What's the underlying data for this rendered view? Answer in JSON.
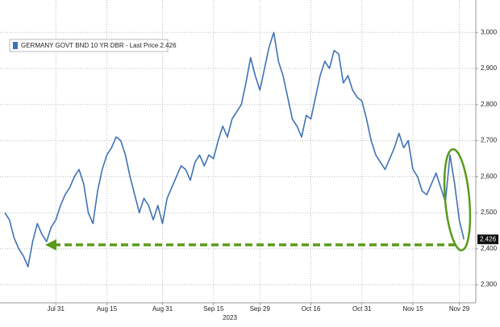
{
  "chart_data": {
    "type": "line",
    "xlabel": "2023",
    "categories": [
      null,
      null,
      null,
      null,
      null,
      null,
      null,
      null,
      null,
      null,
      null,
      "Jul 31",
      null,
      null,
      null,
      null,
      null,
      null,
      null,
      null,
      null,
      null,
      "Aug 15",
      null,
      null,
      null,
      null,
      null,
      null,
      null,
      null,
      null,
      null,
      null,
      "Aug 31",
      null,
      null,
      null,
      null,
      null,
      null,
      null,
      null,
      null,
      null,
      "Sep 15",
      null,
      null,
      null,
      null,
      null,
      null,
      null,
      null,
      null,
      "Sep 29",
      null,
      null,
      null,
      null,
      null,
      null,
      null,
      null,
      null,
      null,
      "Oct 16",
      null,
      null,
      null,
      null,
      null,
      null,
      null,
      null,
      null,
      null,
      "Oct 31",
      null,
      null,
      null,
      null,
      null,
      null,
      null,
      null,
      null,
      null,
      "Nov 15",
      null,
      null,
      null,
      null,
      null,
      null,
      null,
      null,
      null,
      "Nov 29",
      null
    ],
    "series": [
      {
        "name": "GERMANY GOVT BND 10 YR DBR - Last Price 2.426",
        "color": "#3f72b5",
        "values": [
          2.5,
          2.48,
          2.43,
          2.4,
          2.38,
          2.35,
          2.42,
          2.47,
          2.44,
          2.42,
          2.46,
          2.48,
          2.52,
          2.55,
          2.57,
          2.6,
          2.62,
          2.58,
          2.5,
          2.47,
          2.56,
          2.62,
          2.66,
          2.68,
          2.71,
          2.7,
          2.66,
          2.6,
          2.55,
          2.5,
          2.54,
          2.52,
          2.48,
          2.52,
          2.47,
          2.54,
          2.57,
          2.6,
          2.63,
          2.62,
          2.59,
          2.64,
          2.66,
          2.63,
          2.66,
          2.65,
          2.7,
          2.74,
          2.71,
          2.76,
          2.78,
          2.8,
          2.86,
          2.93,
          2.88,
          2.84,
          2.9,
          2.96,
          3.0,
          2.92,
          2.88,
          2.82,
          2.76,
          2.74,
          2.71,
          2.77,
          2.76,
          2.82,
          2.88,
          2.92,
          2.9,
          2.95,
          2.94,
          2.86,
          2.88,
          2.84,
          2.82,
          2.81,
          2.76,
          2.7,
          2.66,
          2.64,
          2.62,
          2.65,
          2.68,
          2.72,
          2.68,
          2.7,
          2.62,
          2.6,
          2.56,
          2.55,
          2.58,
          2.61,
          2.57,
          2.53,
          2.66,
          2.58,
          2.48,
          2.426
        ]
      }
    ],
    "ylim": [
      2.25,
      3.09
    ],
    "yticks": [
      {
        "value": 2.3,
        "label": "2,300"
      },
      {
        "value": 2.4,
        "label": "2,400"
      },
      {
        "value": 2.5,
        "label": "2,500"
      },
      {
        "value": 2.6,
        "label": "2,600"
      },
      {
        "value": 2.7,
        "label": "2,700"
      },
      {
        "value": 2.8,
        "label": "2,800"
      },
      {
        "value": 2.9,
        "label": "2,900"
      },
      {
        "value": 3.0,
        "label": "3,000"
      }
    ],
    "grid": true
  }
}
